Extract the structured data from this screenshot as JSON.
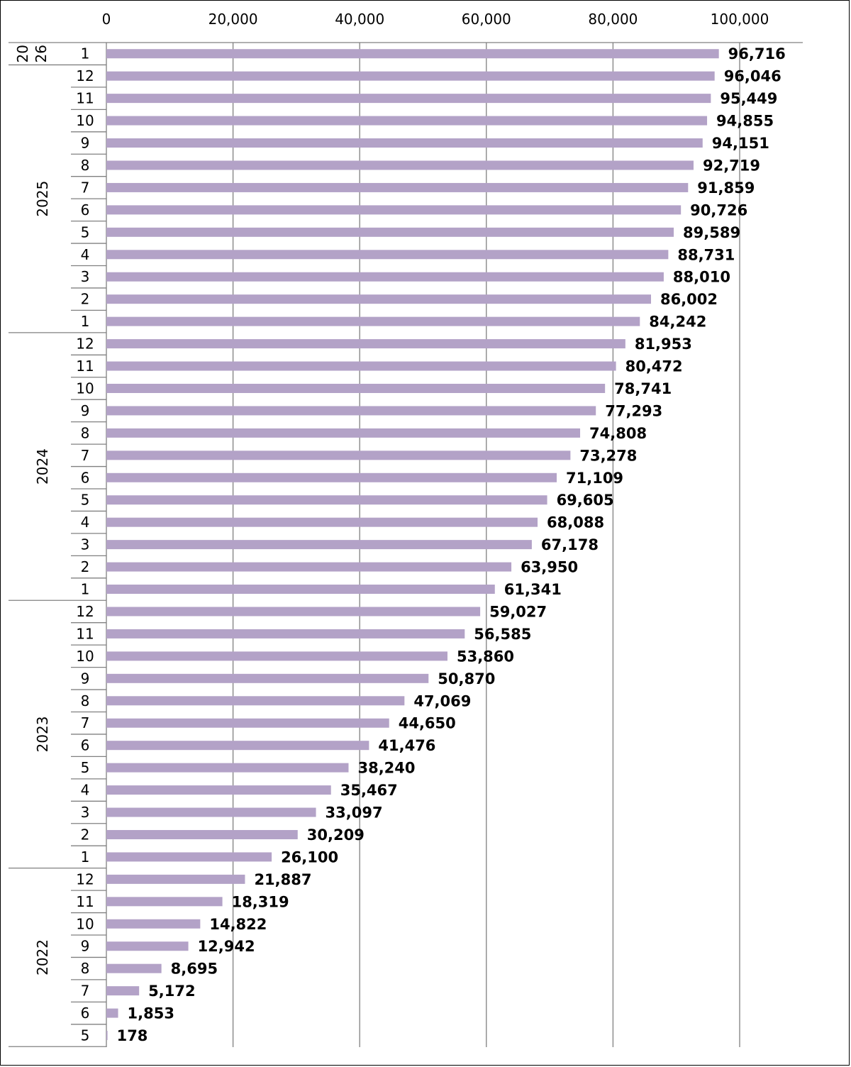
{
  "colors": {
    "bar": "#b3a2c7",
    "grid": "#808080",
    "axis": "#808080",
    "text": "#000000"
  },
  "chart_data": {
    "type": "bar",
    "orientation": "horizontal",
    "xlim": [
      0,
      100000
    ],
    "x_ticks": [
      0,
      20000,
      40000,
      60000,
      80000,
      100000
    ],
    "x_tick_labels": [
      "0",
      "20,000",
      "40,000",
      "60,000",
      "80,000",
      "100,000"
    ],
    "x_axis_position": "top",
    "grid": true,
    "legend": "none",
    "groups": [
      {
        "label": "20\n26",
        "label_parts": [
          "20",
          "26"
        ],
        "categories": [
          "1"
        ],
        "values": [
          96716
        ],
        "value_labels": [
          "96,716"
        ]
      },
      {
        "label": "2025",
        "categories": [
          "12",
          "11",
          "10",
          "9",
          "8",
          "7",
          "6",
          "5",
          "4",
          "3",
          "2",
          "1"
        ],
        "values": [
          96046,
          95449,
          94855,
          94151,
          92719,
          91859,
          90726,
          89589,
          88731,
          88010,
          86002,
          84242
        ],
        "value_labels": [
          "96,046",
          "95,449",
          "94,855",
          "94,151",
          "92,719",
          "91,859",
          "90,726",
          "89,589",
          "88,731",
          "88,010",
          "86,002",
          "84,242"
        ]
      },
      {
        "label": "2024",
        "categories": [
          "12",
          "11",
          "10",
          "9",
          "8",
          "7",
          "6",
          "5",
          "4",
          "3",
          "2",
          "1"
        ],
        "values": [
          81953,
          80472,
          78741,
          77293,
          74808,
          73278,
          71109,
          69605,
          68088,
          67178,
          63950,
          61341
        ],
        "value_labels": [
          "81,953",
          "80,472",
          "78,741",
          "77,293",
          "74,808",
          "73,278",
          "71,109",
          "69,605",
          "68,088",
          "67,178",
          "63,950",
          "61,341"
        ]
      },
      {
        "label": "2023",
        "categories": [
          "12",
          "11",
          "10",
          "9",
          "8",
          "7",
          "6",
          "5",
          "4",
          "3",
          "2",
          "1"
        ],
        "values": [
          59027,
          56585,
          53860,
          50870,
          47069,
          44650,
          41476,
          38240,
          35467,
          33097,
          30209,
          26100
        ],
        "value_labels": [
          "59,027",
          "56,585",
          "53,860",
          "50,870",
          "47,069",
          "44,650",
          "41,476",
          "38,240",
          "35,467",
          "33,097",
          "30,209",
          "26,100"
        ]
      },
      {
        "label": "2022",
        "categories": [
          "12",
          "11",
          "10",
          "9",
          "8",
          "7",
          "6",
          "5"
        ],
        "values": [
          21887,
          18319,
          14822,
          12942,
          8695,
          5172,
          1853,
          178
        ],
        "value_labels": [
          "21,887",
          "18,319",
          "14,822",
          "12,942",
          "8,695",
          "5,172",
          "1,853",
          "178"
        ]
      }
    ]
  }
}
